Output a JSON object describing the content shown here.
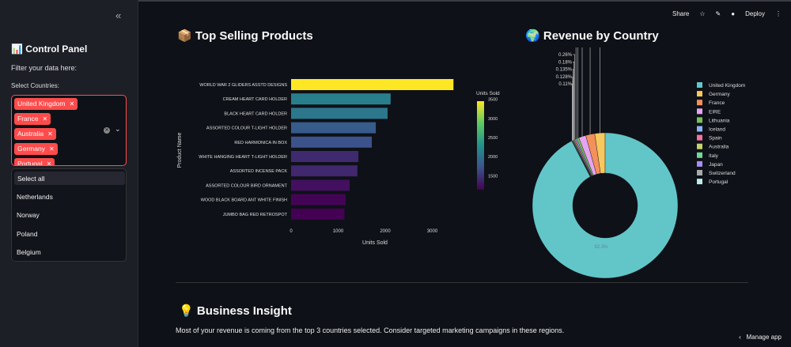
{
  "sidebar": {
    "title": "Control Panel",
    "title_icon": "bar-chart-emoji",
    "subtitle": "Filter your data here:",
    "select_label": "Select Countries:",
    "selected": [
      "United Kingdom",
      "France",
      "Australia",
      "Germany",
      "Portugal"
    ],
    "dropdown": {
      "select_all": "Select all",
      "options": [
        "Netherlands",
        "Norway",
        "Poland",
        "Belgium"
      ]
    }
  },
  "toolbar": {
    "share": "Share",
    "deploy": "Deploy"
  },
  "bar_section": {
    "title": "Top Selling Products",
    "icon": "package-emoji"
  },
  "pie_section": {
    "title": "Revenue by Country",
    "icon": "globe-emoji"
  },
  "insight": {
    "title": "Business Insight",
    "icon": "lightbulb-emoji",
    "text": "Most of your revenue is coming from the top 3 countries selected. Consider targeted marketing campaigns in these regions."
  },
  "manage_app": "Manage app",
  "chart_data": [
    {
      "type": "bar",
      "orientation": "horizontal",
      "xlabel": "Units Sold",
      "ylabel": "Product Name",
      "categories": [
        "WORLD WAR 2 GLIDERS ASSTD DESIGNS",
        "CREAM HEART CARD HOLDER",
        "BLACK HEART CARD HOLDER",
        "ASSORTED COLOUR T-LIGHT HOLDER",
        "RED  HARMONICA IN BOX",
        "WHITE HANGING HEART T-LIGHT HOLDER",
        "ASSORTED INCENSE PACK",
        "ASSORTED COLOUR BIRD ORNAMENT",
        "WOOD BLACK BOARD ANT WHITE FINISH",
        "JUMBO BAG RED RETROSPOT"
      ],
      "values": [
        3450,
        2115,
        2050,
        1800,
        1715,
        1430,
        1410,
        1245,
        1160,
        1135
      ],
      "xticks": [
        0,
        1000,
        2000,
        3000
      ],
      "xlim": [
        0,
        3600
      ],
      "colorbar": {
        "title": "Units Sold",
        "ticks": [
          1500,
          2000,
          2500,
          3000,
          3500
        ],
        "range": [
          1135,
          3450
        ],
        "colorscale": "viridis"
      }
    },
    {
      "type": "pie",
      "hole": true,
      "labels": [
        "United Kingdom",
        "Germany",
        "France",
        "EIRE",
        "Lithuania",
        "Iceland",
        "Spain",
        "Australia",
        "Italy",
        "Japan",
        "Switzerland",
        "Portugal"
      ],
      "values": [
        92.3,
        2.3,
        2.0,
        1.6,
        0.5,
        0.3,
        0.26,
        0.18,
        0.135,
        0.128,
        0.11,
        0.08
      ],
      "text_labels": [
        "92.3%",
        "0.26%",
        "0.18%",
        "0.135%",
        "0.128%",
        "0.11%"
      ],
      "colors": [
        "#62c6c9",
        "#f6c85f",
        "#f2915c",
        "#e5a4f0",
        "#76c25a",
        "#8fb4f5",
        "#f2729e",
        "#c6d36a",
        "#71d99a",
        "#a98cf2",
        "#a9a9a9",
        "#b9ecea"
      ],
      "legend": "right"
    }
  ]
}
